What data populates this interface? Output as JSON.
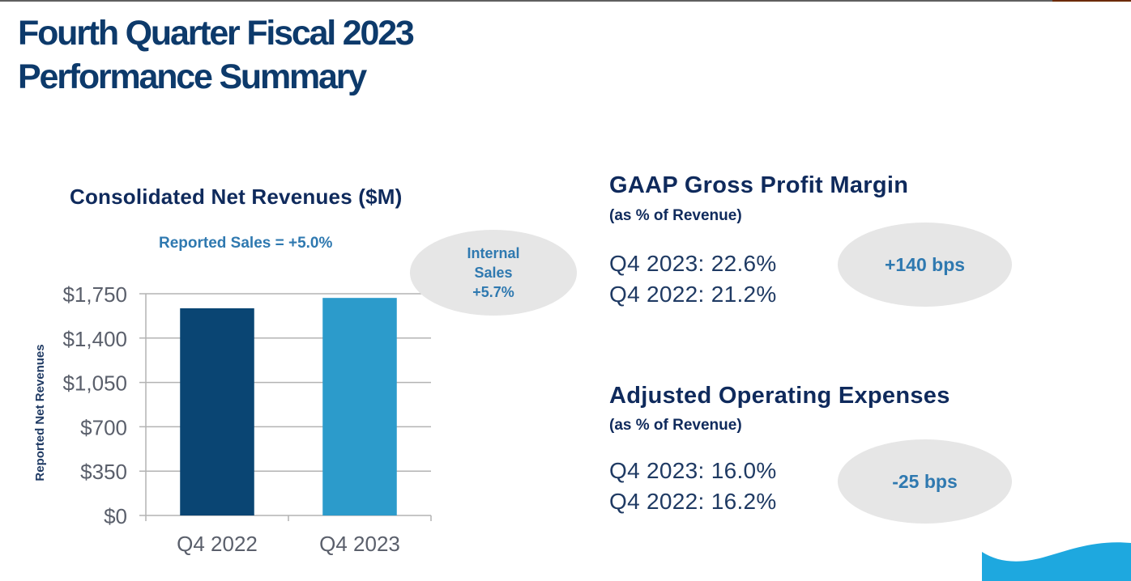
{
  "slide": {
    "title_line1": "Fourth Quarter Fiscal 2023",
    "title_line2": "Performance Summary"
  },
  "colors": {
    "title": "#0d3a6b",
    "accent_text": "#2f79b0",
    "bar_q4_2022": "#0a4573",
    "bar_q4_2023": "#2c9bcb",
    "ellipse_fill": "#e6e6e6",
    "logo_blue": "#1ea8df",
    "top_bar_gray": "#5f5f5f",
    "top_bar_brown": "#6b2a00"
  },
  "chart_data": {
    "type": "bar",
    "title": "Consolidated Net Revenues ($M)",
    "subtitle": "Reported Sales = +5.0%",
    "xlabel": "",
    "ylabel": "Reported Net Revenues",
    "categories": [
      "Q4 2022",
      "Q4 2023"
    ],
    "values": [
      1635,
      1717
    ],
    "ylim": [
      0,
      1750
    ],
    "yticks": [
      0,
      350,
      700,
      1050,
      1400,
      1750
    ],
    "ytick_labels": [
      "$0",
      "$350",
      "$700",
      "$1,050",
      "$1,400",
      "$1,750"
    ],
    "grid": true,
    "legend": "none",
    "annotation": {
      "lines": [
        "Internal",
        "Sales",
        "+5.7%"
      ]
    }
  },
  "metrics": [
    {
      "title": "GAAP Gross Profit Margin",
      "subtitle": "(as % of Revenue)",
      "rows": [
        {
          "label": "Q4 2023:",
          "value": "22.6%"
        },
        {
          "label": "Q4 2022:",
          "value": "21.2%"
        }
      ],
      "change": "+140 bps"
    },
    {
      "title": "Adjusted Operating Expenses",
      "subtitle": "(as % of Revenue)",
      "rows": [
        {
          "label": "Q4 2023:",
          "value": "16.0%"
        },
        {
          "label": "Q4 2022:",
          "value": "16.2%"
        }
      ],
      "change": "-25 bps"
    }
  ],
  "logo": {
    "icon": "wave-logo-icon"
  }
}
